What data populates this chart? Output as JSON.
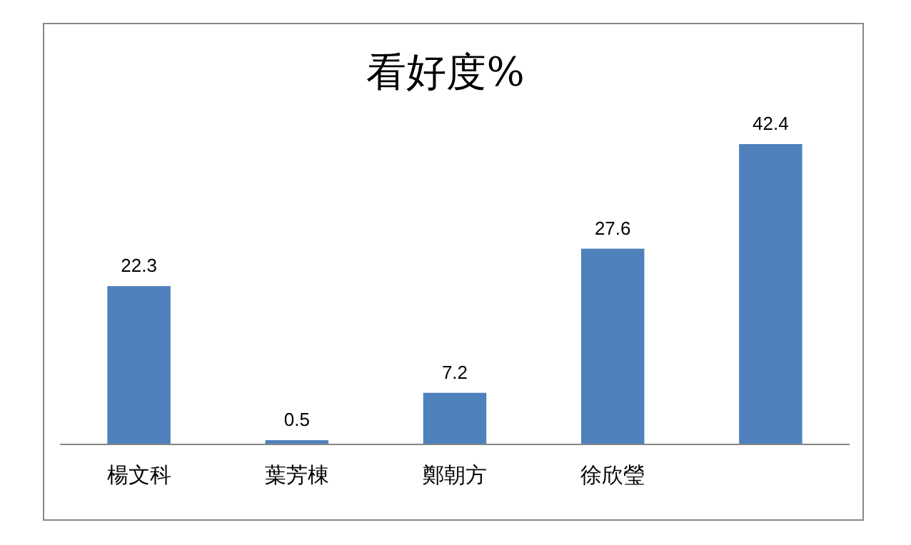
{
  "chart_data": {
    "type": "bar",
    "title": "看好度%",
    "categories": [
      "楊文科",
      "葉芳棟",
      "鄭朝方",
      "徐欣瑩",
      null
    ],
    "values": [
      22.3,
      0.5,
      7.2,
      27.6,
      42.4
    ],
    "color": "#4f81bd",
    "data_labels": true
  }
}
